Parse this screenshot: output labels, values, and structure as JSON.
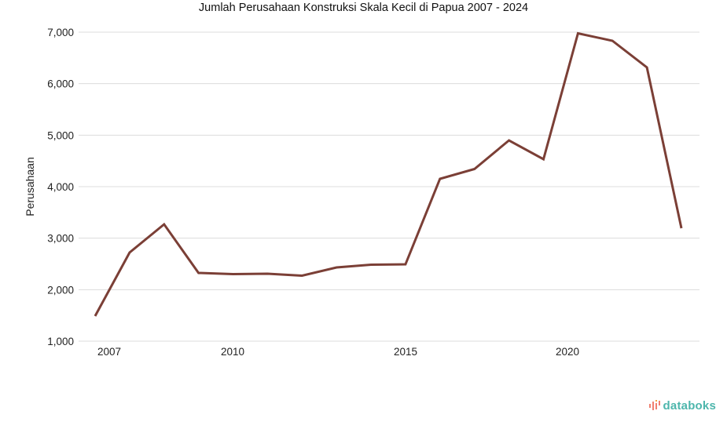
{
  "chart_data": {
    "type": "line",
    "title": "Jumlah Perusahaan Konstruksi Skala Kecil di Papua 2007 - 2024",
    "xlabel": "",
    "ylabel": "Perusahaan",
    "x": [
      2007,
      2008,
      2009,
      2010,
      2011,
      2012,
      2013,
      2014,
      2015,
      2016,
      2017,
      2018,
      2019,
      2020,
      2021,
      2022,
      2023,
      2024
    ],
    "series": [
      {
        "name": "Perusahaan",
        "color": "#7b3f36",
        "values": [
          1487,
          2721,
          3269,
          2325,
          2302,
          2310,
          2271,
          2431,
          2485,
          2492,
          4152,
          4343,
          4898,
          4533,
          6977,
          6832,
          6315,
          3193
        ]
      }
    ],
    "ylim": [
      1000,
      7000
    ],
    "yticks": [
      1000,
      2000,
      3000,
      4000,
      5000,
      6000,
      7000
    ],
    "ytick_labels": [
      "1,000",
      "2,000",
      "3,000",
      "4,000",
      "5,000",
      "6,000",
      "7,000"
    ],
    "xtick_labels": [
      "2007",
      "2010",
      "2015",
      "2020"
    ],
    "grid": true,
    "legend": false
  },
  "brand": {
    "name": "databoks",
    "text_color": "#4db6ac",
    "icon_color": "#f08070"
  }
}
